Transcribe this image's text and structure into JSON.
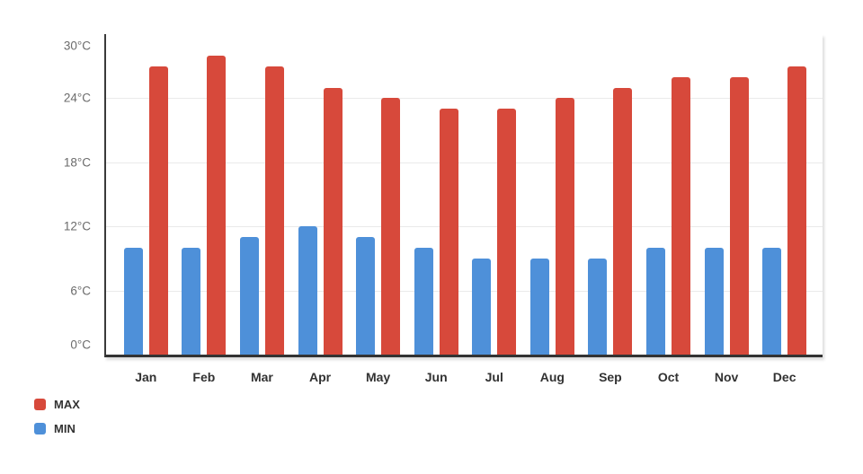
{
  "chart_data": {
    "type": "bar",
    "title": "",
    "categories": [
      "Jan",
      "Feb",
      "Mar",
      "Apr",
      "May",
      "Jun",
      "Jul",
      "Aug",
      "Sep",
      "Oct",
      "Nov",
      "Dec"
    ],
    "series": [
      {
        "name": "MAX",
        "color": "#D7493B",
        "values": [
          27,
          28,
          27,
          25,
          24,
          23,
          23,
          24,
          25,
          26,
          26,
          27
        ]
      },
      {
        "name": "MIN",
        "color": "#4E90D9",
        "values": [
          10,
          10,
          11,
          12,
          11,
          10,
          9,
          9,
          9,
          10,
          10,
          10
        ]
      }
    ],
    "unit": "°C",
    "ylabel": "",
    "xlabel": "",
    "ylim": [
      0,
      30
    ],
    "yticks": [
      0,
      6,
      12,
      18,
      24,
      30
    ],
    "ytick_labels": [
      "0°C",
      "6°C",
      "12°C",
      "18°C",
      "24°C",
      "30°C"
    ],
    "grid": true,
    "gridline_ticks": [
      6,
      12,
      18,
      24
    ],
    "legend_position": "bottom-left",
    "bar_order_in_group": [
      "MIN",
      "MAX"
    ]
  },
  "colors": {
    "background": "#FFFFFF",
    "axis_line": "#3A3A3A",
    "gridline": "#EAEAEA",
    "tick_text": "#6B6B6B",
    "month_text": "#323232",
    "legend_text": "#333333"
  }
}
